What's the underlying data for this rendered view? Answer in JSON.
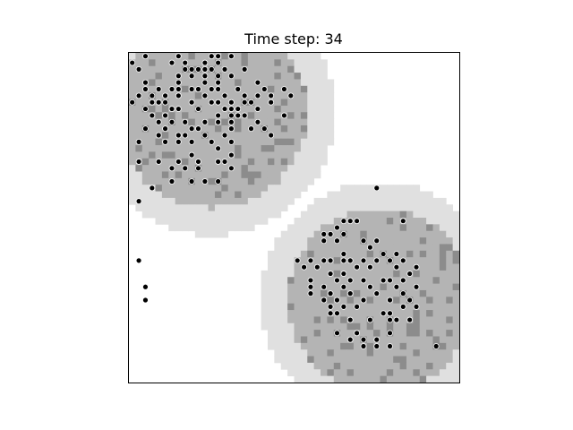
{
  "chart_data": {
    "type": "heatmap",
    "title": "Time step: 34",
    "xlabel": "",
    "ylabel": "",
    "grid": false,
    "legend": "none",
    "grid_size": [
      50,
      50
    ],
    "colors": {
      "background": "#ffffff",
      "halo": "#e0e0e0",
      "occupied": "#b4b4b4",
      "dense": "#8c8c8c",
      "agent": "#000000",
      "agent_edge": "#ffffff",
      "frame": "#000000"
    },
    "regions": [
      {
        "name": "upper-left-cluster",
        "center_col": 12.5,
        "center_row": 9,
        "inner_radius": 14.5,
        "halo_radius": 18.7
      },
      {
        "name": "lower-right-cluster",
        "center_col": 38,
        "center_row": 37.5,
        "inner_radius": 14,
        "halo_radius": 18
      }
    ],
    "agents": [
      [
        2.5,
        0.5
      ],
      [
        1.5,
        2.5
      ],
      [
        7.5,
        0.5
      ],
      [
        12.5,
        0.5
      ],
      [
        13.5,
        0.5
      ],
      [
        15.5,
        0.5
      ],
      [
        8.5,
        1.5
      ],
      [
        11.5,
        1.5
      ],
      [
        13.5,
        1.5
      ],
      [
        6.5,
        1.5
      ],
      [
        8.5,
        2.5
      ],
      [
        9.5,
        2.5
      ],
      [
        10.5,
        2.5
      ],
      [
        11.5,
        2.5
      ],
      [
        12.5,
        2.5
      ],
      [
        14.5,
        2.5
      ],
      [
        17.5,
        2.5
      ],
      [
        7.5,
        3.5
      ],
      [
        9.5,
        3.5
      ],
      [
        11.5,
        3.5
      ],
      [
        13.5,
        3.5
      ],
      [
        15.5,
        3.5
      ],
      [
        2.5,
        4.5
      ],
      [
        7.5,
        4.5
      ],
      [
        11.5,
        4.5
      ],
      [
        13.5,
        4.5
      ],
      [
        19.5,
        4.5
      ],
      [
        2.5,
        5.5
      ],
      [
        4.5,
        5.5
      ],
      [
        6.5,
        5.5
      ],
      [
        7.5,
        5.5
      ],
      [
        9.5,
        5.5
      ],
      [
        10.5,
        5.5
      ],
      [
        12.5,
        5.5
      ],
      [
        13.5,
        5.5
      ],
      [
        16.5,
        5.5
      ],
      [
        20.5,
        5.5
      ],
      [
        23.5,
        5.5
      ],
      [
        1.5,
        6.5
      ],
      [
        3.5,
        6.5
      ],
      [
        5.5,
        6.5
      ],
      [
        7.5,
        6.5
      ],
      [
        11.5,
        6.5
      ],
      [
        14.5,
        6.5
      ],
      [
        17.5,
        6.5
      ],
      [
        19.5,
        6.5
      ],
      [
        21.5,
        6.5
      ],
      [
        24.5,
        6.5
      ],
      [
        0.5,
        7.5
      ],
      [
        3.5,
        7.5
      ],
      [
        4.5,
        7.5
      ],
      [
        5.5,
        7.5
      ],
      [
        9.5,
        7.5
      ],
      [
        12.5,
        7.5
      ],
      [
        13.5,
        7.5
      ],
      [
        15.5,
        7.5
      ],
      [
        17.5,
        7.5
      ],
      [
        18.5,
        7.5
      ],
      [
        21.5,
        7.5
      ],
      [
        2.5,
        8.5
      ],
      [
        6.5,
        8.5
      ],
      [
        7.5,
        8.5
      ],
      [
        10.5,
        8.5
      ],
      [
        14.5,
        8.5
      ],
      [
        15.5,
        8.5
      ],
      [
        16.5,
        8.5
      ],
      [
        19.5,
        8.5
      ],
      [
        3.5,
        9.5
      ],
      [
        5.5,
        9.5
      ],
      [
        13.5,
        9.5
      ],
      [
        15.5,
        9.5
      ],
      [
        16.5,
        9.5
      ],
      [
        17.5,
        9.5
      ],
      [
        23.5,
        9.5
      ],
      [
        4.5,
        10.5
      ],
      [
        6.5,
        10.5
      ],
      [
        8.5,
        10.5
      ],
      [
        11.5,
        10.5
      ],
      [
        13.5,
        10.5
      ],
      [
        15.5,
        10.5
      ],
      [
        19.5,
        10.5
      ],
      [
        2.5,
        11.5
      ],
      [
        5.5,
        11.5
      ],
      [
        9.5,
        11.5
      ],
      [
        10.5,
        11.5
      ],
      [
        15.5,
        11.5
      ],
      [
        18.5,
        11.5
      ],
      [
        20.5,
        11.5
      ],
      [
        7.5,
        12.5
      ],
      [
        8.5,
        12.5
      ],
      [
        11.5,
        12.5
      ],
      [
        14.5,
        12.5
      ],
      [
        21.5,
        12.5
      ],
      [
        5.5,
        13.5
      ],
      [
        7.5,
        13.5
      ],
      [
        9.5,
        13.5
      ],
      [
        12.5,
        13.5
      ],
      [
        15.5,
        13.5
      ],
      [
        1.5,
        16.5
      ],
      [
        4.5,
        16.5
      ],
      [
        7.5,
        16.5
      ],
      [
        10.5,
        16.5
      ],
      [
        13.5,
        16.5
      ],
      [
        6.5,
        17.5
      ],
      [
        8.5,
        17.5
      ],
      [
        10.5,
        17.5
      ],
      [
        15.5,
        17.5
      ],
      [
        1.5,
        13.5
      ],
      [
        4.5,
        12.5
      ],
      [
        9.5,
        15.5
      ],
      [
        14.5,
        16.5
      ],
      [
        15.5,
        15.5
      ],
      [
        13.5,
        14.5
      ],
      [
        6.5,
        19.5
      ],
      [
        9.5,
        19.5
      ],
      [
        11.5,
        19.5
      ],
      [
        13.5,
        19.5
      ],
      [
        3.5,
        20.5
      ],
      [
        1.5,
        22.5
      ],
      [
        37.5,
        20.5
      ],
      [
        41.5,
        25.5
      ],
      [
        32.5,
        25.5
      ],
      [
        33.5,
        25.5
      ],
      [
        34.5,
        25.5
      ],
      [
        31.5,
        26.5
      ],
      [
        32.5,
        27.5
      ],
      [
        29.5,
        27.5
      ],
      [
        30.5,
        27.5
      ],
      [
        35.5,
        28.5
      ],
      [
        37.5,
        28.5
      ],
      [
        29.5,
        28.5
      ],
      [
        31.5,
        28.5
      ],
      [
        36.5,
        29.5
      ],
      [
        38.5,
        30.5
      ],
      [
        40.5,
        30.5
      ],
      [
        30.5,
        31.5
      ],
      [
        32.5,
        30.5
      ],
      [
        25.5,
        31.5
      ],
      [
        27.5,
        31.5
      ],
      [
        29.5,
        31.5
      ],
      [
        32.5,
        31.5
      ],
      [
        33.5,
        31.5
      ],
      [
        35.5,
        31.5
      ],
      [
        37.5,
        31.5
      ],
      [
        39.5,
        31.5
      ],
      [
        41.5,
        31.5
      ],
      [
        43.5,
        32.5
      ],
      [
        26.5,
        32.5
      ],
      [
        28.5,
        32.5
      ],
      [
        30.5,
        33.5
      ],
      [
        32.5,
        33.5
      ],
      [
        34.5,
        32.5
      ],
      [
        36.5,
        32.5
      ],
      [
        40.5,
        32.5
      ],
      [
        42.5,
        33.5
      ],
      [
        27.5,
        34.5
      ],
      [
        31.5,
        34.5
      ],
      [
        33.5,
        34.5
      ],
      [
        35.5,
        34.5
      ],
      [
        38.5,
        34.5
      ],
      [
        39.5,
        34.5
      ],
      [
        41.5,
        34.5
      ],
      [
        27.5,
        35.5
      ],
      [
        29.5,
        35.5
      ],
      [
        32.5,
        35.5
      ],
      [
        36.5,
        35.5
      ],
      [
        40.5,
        35.5
      ],
      [
        43.5,
        35.5
      ],
      [
        27.5,
        36.5
      ],
      [
        30.5,
        36.5
      ],
      [
        33.5,
        36.5
      ],
      [
        35.5,
        37.5
      ],
      [
        37.5,
        36.5
      ],
      [
        41.5,
        36.5
      ],
      [
        29.5,
        37.5
      ],
      [
        31.5,
        37.5
      ],
      [
        39.5,
        37.5
      ],
      [
        42.5,
        37.5
      ],
      [
        30.5,
        38.5
      ],
      [
        32.5,
        38.5
      ],
      [
        34.5,
        38.5
      ],
      [
        41.5,
        38.5
      ],
      [
        43.5,
        38.5
      ],
      [
        30.5,
        39.5
      ],
      [
        31.5,
        39.5
      ],
      [
        38.5,
        39.5
      ],
      [
        39.5,
        39.5
      ],
      [
        33.5,
        40.5
      ],
      [
        36.5,
        40.5
      ],
      [
        39.5,
        40.5
      ],
      [
        31.5,
        42.5
      ],
      [
        34.5,
        42.5
      ],
      [
        39.5,
        42.5
      ],
      [
        35.5,
        43.5
      ],
      [
        37.5,
        43.5
      ],
      [
        33.5,
        43.5
      ],
      [
        35.5,
        44.5
      ],
      [
        37.5,
        44.5
      ],
      [
        39.5,
        44.5
      ],
      [
        46.5,
        44.5
      ],
      [
        40.5,
        40.5
      ],
      [
        42.5,
        40.5
      ],
      [
        0.5,
        1.5
      ],
      [
        1.5,
        31.5
      ],
      [
        2.5,
        35.5
      ],
      [
        2.5,
        37.5
      ]
    ]
  }
}
